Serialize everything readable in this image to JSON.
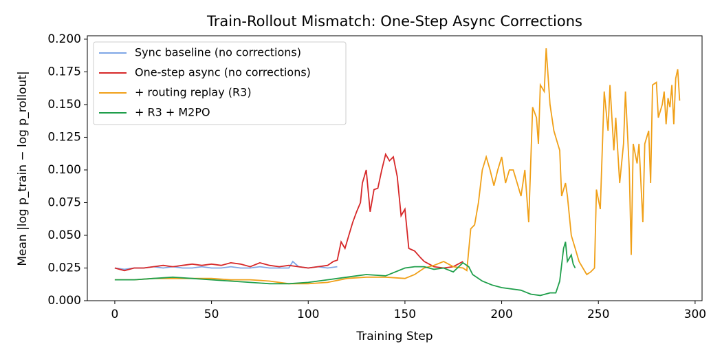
{
  "chart_data": {
    "type": "line",
    "title": "Train-Rollout Mismatch: One-Step Async Corrections",
    "x_label": "Training Step",
    "y_label": "Mean |log p_train − log p_rollout|",
    "xlim": [
      -14.2,
      303.6
    ],
    "ylim": [
      0,
      0.2026
    ],
    "xticks": [
      0,
      50,
      100,
      150,
      200,
      250,
      300
    ],
    "yticks": [
      {
        "value": 0,
        "label": "0.000"
      },
      {
        "value": 0.025,
        "label": "0.025"
      },
      {
        "value": 0.05,
        "label": "0.050"
      },
      {
        "value": 0.075,
        "label": "0.075"
      },
      {
        "value": 0.1,
        "label": "0.100"
      },
      {
        "value": 0.125,
        "label": "0.125"
      },
      {
        "value": 0.15,
        "label": "0.150"
      },
      {
        "value": 0.175,
        "label": "0.175"
      },
      {
        "value": 0.2,
        "label": "0.200"
      }
    ],
    "legend": "upper left",
    "series": [
      {
        "name": "Sync baseline (no corrections)",
        "color": "#7ea6e6",
        "x": [
          0,
          5,
          10,
          15,
          20,
          25,
          30,
          35,
          40,
          45,
          50,
          55,
          60,
          65,
          70,
          75,
          80,
          85,
          90,
          92,
          95,
          100,
          105,
          110,
          115
        ],
        "values": [
          0.025,
          0.024,
          0.025,
          0.025,
          0.026,
          0.025,
          0.026,
          0.025,
          0.025,
          0.026,
          0.025,
          0.025,
          0.026,
          0.025,
          0.025,
          0.026,
          0.025,
          0.025,
          0.025,
          0.03,
          0.026,
          0.025,
          0.026,
          0.025,
          0.026
        ]
      },
      {
        "name": "One-step async (no corrections)",
        "color": "#d62728",
        "x": [
          0,
          5,
          10,
          15,
          20,
          25,
          30,
          35,
          40,
          45,
          50,
          55,
          60,
          65,
          70,
          75,
          80,
          85,
          90,
          95,
          100,
          105,
          110,
          113,
          115,
          117,
          119,
          121,
          123,
          125,
          127,
          128,
          130,
          132,
          134,
          136,
          138,
          140,
          142,
          144,
          146,
          148,
          150,
          152,
          155,
          158,
          160,
          165,
          170,
          175,
          180
        ],
        "values": [
          0.025,
          0.023,
          0.025,
          0.025,
          0.026,
          0.027,
          0.026,
          0.027,
          0.028,
          0.027,
          0.028,
          0.027,
          0.029,
          0.028,
          0.026,
          0.029,
          0.027,
          0.026,
          0.027,
          0.026,
          0.025,
          0.026,
          0.027,
          0.03,
          0.031,
          0.045,
          0.04,
          0.05,
          0.06,
          0.068,
          0.075,
          0.09,
          0.1,
          0.068,
          0.085,
          0.086,
          0.1,
          0.112,
          0.107,
          0.11,
          0.095,
          0.065,
          0.07,
          0.04,
          0.038,
          0.033,
          0.03,
          0.026,
          0.025,
          0.026,
          0.03
        ]
      },
      {
        "name": "+ routing replay (R3)",
        "color": "#f0a018",
        "x": [
          0,
          10,
          20,
          30,
          40,
          50,
          60,
          70,
          80,
          90,
          100,
          110,
          120,
          130,
          140,
          150,
          155,
          160,
          165,
          170,
          175,
          180,
          182,
          184,
          186,
          188,
          190,
          192,
          194,
          196,
          198,
          200,
          202,
          204,
          206,
          208,
          210,
          212,
          214,
          216,
          218,
          219,
          220,
          222,
          223,
          225,
          227,
          229,
          230,
          231,
          233,
          234,
          236,
          238,
          240,
          242,
          244,
          246,
          248,
          249,
          251,
          253,
          255,
          256,
          258,
          259,
          261,
          263,
          264,
          266,
          267,
          268,
          270,
          271,
          273,
          274,
          276,
          277,
          278,
          280,
          281,
          283,
          284,
          285,
          286,
          287,
          288,
          289,
          290,
          291,
          292
        ],
        "values": [
          0.016,
          0.016,
          0.017,
          0.017,
          0.017,
          0.017,
          0.016,
          0.016,
          0.015,
          0.013,
          0.013,
          0.014,
          0.017,
          0.018,
          0.018,
          0.017,
          0.02,
          0.025,
          0.027,
          0.03,
          0.026,
          0.025,
          0.023,
          0.055,
          0.058,
          0.075,
          0.1,
          0.11,
          0.1,
          0.088,
          0.1,
          0.11,
          0.09,
          0.1,
          0.1,
          0.09,
          0.08,
          0.1,
          0.06,
          0.148,
          0.14,
          0.12,
          0.165,
          0.16,
          0.193,
          0.15,
          0.13,
          0.12,
          0.115,
          0.08,
          0.09,
          0.08,
          0.05,
          0.04,
          0.03,
          0.025,
          0.02,
          0.022,
          0.025,
          0.085,
          0.07,
          0.16,
          0.13,
          0.165,
          0.115,
          0.14,
          0.09,
          0.12,
          0.16,
          0.1,
          0.035,
          0.12,
          0.105,
          0.12,
          0.06,
          0.12,
          0.13,
          0.09,
          0.165,
          0.167,
          0.14,
          0.15,
          0.16,
          0.135,
          0.155,
          0.148,
          0.165,
          0.135,
          0.17,
          0.177,
          0.153
        ]
      },
      {
        "name": "+ R3 + M2PO",
        "color": "#1e9e4a",
        "x": [
          0,
          10,
          20,
          30,
          40,
          50,
          60,
          70,
          80,
          90,
          100,
          110,
          120,
          130,
          140,
          150,
          155,
          160,
          165,
          170,
          175,
          180,
          183,
          185,
          190,
          195,
          200,
          205,
          210,
          215,
          220,
          225,
          228,
          230,
          232,
          233,
          234,
          236,
          237,
          238
        ],
        "values": [
          0.016,
          0.016,
          0.017,
          0.018,
          0.017,
          0.016,
          0.015,
          0.014,
          0.013,
          0.013,
          0.014,
          0.016,
          0.018,
          0.02,
          0.019,
          0.025,
          0.026,
          0.026,
          0.024,
          0.025,
          0.022,
          0.029,
          0.026,
          0.02,
          0.015,
          0.012,
          0.01,
          0.009,
          0.008,
          0.005,
          0.004,
          0.006,
          0.006,
          0.015,
          0.04,
          0.045,
          0.03,
          0.035,
          0.028,
          0.025
        ]
      }
    ]
  }
}
